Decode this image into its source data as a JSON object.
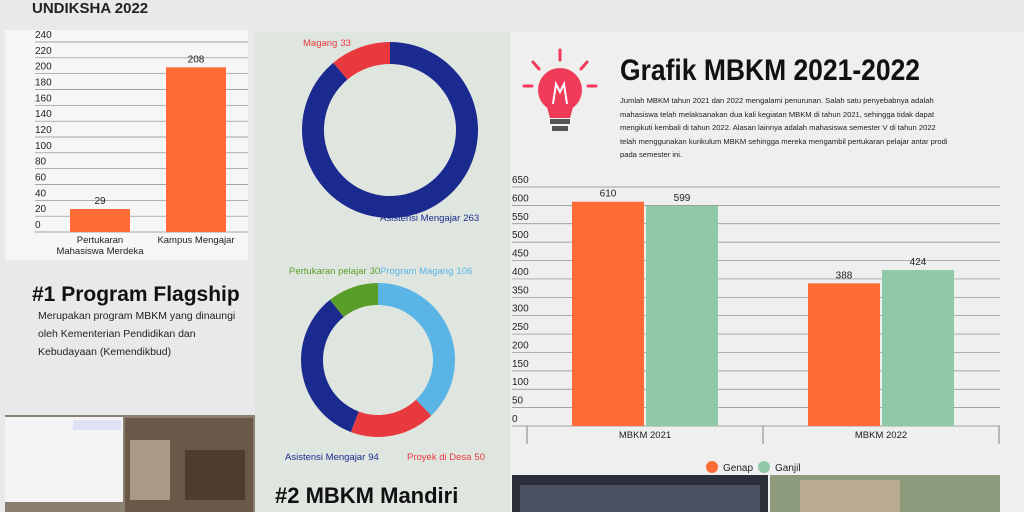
{
  "header": {
    "title": "UNDIKSHA 2022"
  },
  "sections": [
    {
      "title": "#1 Program Flagship",
      "text": "Merupakan program MBKM yang dinaungi oleh Kementerian Pendidikan dan Kebudayaan (Kemendikbud)"
    },
    {
      "title": "#2 MBKM Mandiri"
    },
    {
      "title": "Grafik MBKM 2021-2022",
      "text": "Jumlah MBKM tahun 2021 dan 2022 mengalami penurunan. Salah satu penyebabnya adalah mahasiswa telah melaksanakan dua kali kegiatan MBKM di tahun 2021, sehingga tidak dapat mengikuti kembali di tahun 2022. Alasan lainnya adalah mahasiswa semester V di tahun 2022 telah menggunakan kurikulum MBKM sehingga mereka mengambil pertukaran pelajar antar prodi pada semester ini."
    }
  ],
  "chart_data": [
    {
      "type": "bar",
      "categories": [
        "Pertukaran Mahasiswa Merdeka",
        "Kampus Mengajar"
      ],
      "values": [
        29,
        208
      ],
      "color": "#ff6b35",
      "ylim": [
        0,
        240
      ],
      "yticks": [
        0,
        20,
        40,
        60,
        80,
        100,
        120,
        140,
        160,
        180,
        200,
        220,
        240
      ],
      "grid": true
    },
    {
      "type": "donut",
      "categories": [
        "Asistensi Mengajar",
        "Magang"
      ],
      "values": [
        263,
        33
      ],
      "colors": [
        "#1b2a8f",
        "#e8393f"
      ]
    },
    {
      "type": "donut",
      "categories": [
        "Program Magang",
        "Proyek di Desa",
        "Asistensi Mengajar",
        "Pertukaran pelajar"
      ],
      "values": [
        106,
        50,
        94,
        30
      ],
      "colors": [
        "#5ab4e5",
        "#e8393f",
        "#1b2a8f",
        "#5a9e2a"
      ]
    },
    {
      "type": "bar",
      "categories": [
        "MBKM 2021",
        "MBKM 2022"
      ],
      "series": [
        {
          "name": "Genap",
          "color": "#ff6b35",
          "values": [
            610,
            388
          ]
        },
        {
          "name": "Ganjil",
          "color": "#8fc9a8",
          "values": [
            599,
            424
          ]
        }
      ],
      "ylim": [
        0,
        650
      ],
      "yticks": [
        0,
        50,
        100,
        150,
        200,
        250,
        300,
        350,
        400,
        450,
        500,
        550,
        600,
        650
      ],
      "grid": true,
      "legend": "bottom"
    }
  ]
}
